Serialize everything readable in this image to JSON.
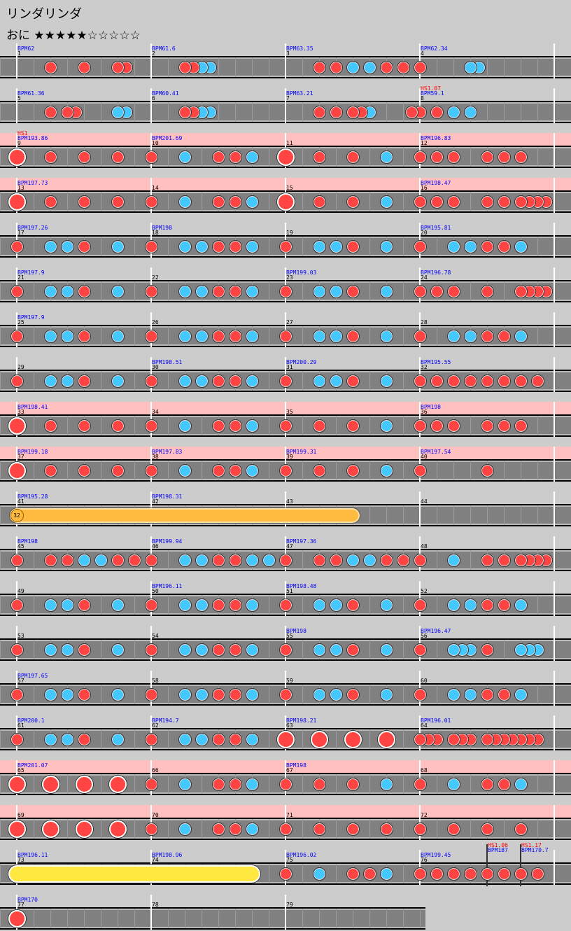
{
  "title": "リンダリンダ",
  "difficulty": {
    "label": "おに",
    "stars": "★★★★★☆☆☆☆☆",
    "level": 5,
    "max": 10
  },
  "colors": {
    "don": "#ff4444",
    "ka": "#44c8ff",
    "gogo": "#ffc0c0",
    "lane": "#808080",
    "roll": "#ffe840",
    "balloon": "#ffbb40"
  },
  "rows": [
    {
      "gogo": false,
      "measures": [
        {
          "num": "1",
          "bpm": "BPM62"
        },
        {
          "num": "2",
          "bpm": "BPM61.6"
        },
        {
          "num": "3",
          "bpm": "BPM63.35"
        },
        {
          "num": "4",
          "bpm": "BPM62.34"
        }
      ],
      "notes": "4d 8d 12d 13d 20d 21d 22k 23k 36d 38d 40k 42k 44d 46d 48d 54k 55k"
    },
    {
      "gogo": false,
      "measures": [
        {
          "num": "5",
          "bpm": "BPM61.36"
        },
        {
          "num": "6",
          "bpm": "BPM60.41"
        },
        {
          "num": "7",
          "bpm": "BPM63.21"
        },
        {
          "num": "8",
          "bpm": "BPM59.1",
          "hs": "HS1.07"
        }
      ],
      "notes": "4d 6d 7d 12k 13k 20d 21d 22k 23k 36d 38d 40d 41d 42k 47d 48d 50d 52k 54k"
    },
    {
      "gogo": true,
      "measures": [
        {
          "num": "9",
          "bpm": "BPM193.86",
          "hs": "HS1"
        },
        {
          "num": "10",
          "bpm": "BPM201.69"
        },
        {
          "num": "11"
        },
        {
          "num": "12",
          "bpm": "BPM196.83"
        }
      ],
      "notes": "0D 4d 8d 12d 16d 20k 24d 26d 28k 32D 36d 40d 44k 48d 50d 52d 56d 58d 60d"
    },
    {
      "gogo": true,
      "measures": [
        {
          "num": "13",
          "bpm": "BPM197.73"
        },
        {
          "num": "14"
        },
        {
          "num": "15"
        },
        {
          "num": "16",
          "bpm": "BPM198.47"
        }
      ],
      "notes": "0D 4d 8d 12d 16d 20k 24d 26d 28k 32D 36d 40d 44k 48d 50d 52d 56d 58d 60d 61d 62d 63d"
    },
    {
      "gogo": false,
      "measures": [
        {
          "num": "17",
          "bpm": "BPM197.26"
        },
        {
          "num": "18",
          "bpm": "BPM198"
        },
        {
          "num": "19"
        },
        {
          "num": "20",
          "bpm": "BPM195.81"
        }
      ],
      "notes": "0d 4k 6k 8d 12k 16d 20k 22k 24d 26d 28k 32d 36k 38k 40d 44k 48d 52k 54k 56d 58d 60k"
    },
    {
      "gogo": false,
      "measures": [
        {
          "num": "21",
          "bpm": "BPM197.9"
        },
        {
          "num": "22"
        },
        {
          "num": "23",
          "bpm": "BPM199.03"
        },
        {
          "num": "24",
          "bpm": "BPM196.78"
        }
      ],
      "notes": "0d 4k 6k 8d 12k 16d 20k 22k 24d 26d 28k 32d 36k 38k 40d 44k 48d 50d 52d 56d 60d 61d 62d 63d"
    },
    {
      "gogo": false,
      "measures": [
        {
          "num": "25",
          "bpm": "BPM197.9"
        },
        {
          "num": "26"
        },
        {
          "num": "27"
        },
        {
          "num": "28"
        }
      ],
      "notes": "0d 4k 6k 8d 12k 16d 20k 22k 24d 26d 28k 32d 36k 38k 40d 44k 48d 52k 54k 56d 58d 60k"
    },
    {
      "gogo": false,
      "measures": [
        {
          "num": "29"
        },
        {
          "num": "30",
          "bpm": "BPM198.51"
        },
        {
          "num": "31",
          "bpm": "BPM200.29"
        },
        {
          "num": "32",
          "bpm": "BPM195.55"
        }
      ],
      "notes": "0d 4k 6k 8d 12k 16d 20k 22k 24d 26d 28k 32d 36k 38k 40d 44k 48d 50d 52d 54d 56d 58d 60d 62d"
    },
    {
      "gogo": true,
      "measures": [
        {
          "num": "33",
          "bpm": "BPM198.41"
        },
        {
          "num": "34"
        },
        {
          "num": "35"
        },
        {
          "num": "36",
          "bpm": "BPM198"
        }
      ],
      "notes": "0D 4d 8d 12d 16d 20k 24d 26d 28k 32d 36d 40d 44k 48d 50d 52d 56d 58d 60d"
    },
    {
      "gogo": true,
      "measures": [
        {
          "num": "37",
          "bpm": "BPM199.18"
        },
        {
          "num": "38",
          "bpm": "BPM197.83"
        },
        {
          "num": "39",
          "bpm": "BPM199.31"
        },
        {
          "num": "40",
          "bpm": "BPM197.54"
        }
      ],
      "notes": "0D 4d 8d 12d 16d 20k 24d 26d 28k 32d 36d 40d 44k 48d 56d"
    },
    {
      "gogo": false,
      "measures": [
        {
          "num": "41",
          "bpm": "BPM195.28"
        },
        {
          "num": "42",
          "bpm": "BPM198.31"
        },
        {
          "num": "43"
        },
        {
          "num": "44"
        }
      ],
      "notes": "",
      "balloon": {
        "start": 0,
        "end": 40,
        "count": "32"
      }
    },
    {
      "gogo": false,
      "measures": [
        {
          "num": "45",
          "bpm": "BPM198"
        },
        {
          "num": "46",
          "bpm": "BPM199.94"
        },
        {
          "num": "47",
          "bpm": "BPM197.36"
        },
        {
          "num": "48"
        }
      ],
      "notes": "0d 4d 6d 8k 10k 12d 14d 16d 20k 22k 24d 26d 28k 30k 32d 36d 38d 40k 42k 44d 46d 48d 52k 56d 58d 60d 61d 62d 63d"
    },
    {
      "gogo": false,
      "measures": [
        {
          "num": "49"
        },
        {
          "num": "50",
          "bpm": "BPM196.11"
        },
        {
          "num": "51",
          "bpm": "BPM198.48"
        },
        {
          "num": "52"
        }
      ],
      "notes": "0d 4k 6k 8d 12k 16d 20k 22k 24d 26d 28k 32d 36k 38k 40d 44k 48d 52k 54k 56d 58d 60k"
    },
    {
      "gogo": false,
      "measures": [
        {
          "num": "53"
        },
        {
          "num": "54"
        },
        {
          "num": "55",
          "bpm": "BPM198"
        },
        {
          "num": "56",
          "bpm": "BPM196.47"
        }
      ],
      "notes": "0d 4k 6k 8d 12k 16d 20k 22k 24d 26d 28k 32d 36k 38k 40d 44k 48d 52k 53k 54k 56d 60k 61k 62k"
    },
    {
      "gogo": false,
      "measures": [
        {
          "num": "57",
          "bpm": "BPM197.65"
        },
        {
          "num": "58"
        },
        {
          "num": "59"
        },
        {
          "num": "60"
        }
      ],
      "notes": "0d 4k 6k 8d 12k 16d 20k 22k 24d 26d 28k 32d 36k 38k 40d 44k 48d 52k 54k 56d 58d 60k"
    },
    {
      "gogo": false,
      "measures": [
        {
          "num": "61",
          "bpm": "BPM200.1"
        },
        {
          "num": "62",
          "bpm": "BPM194.7"
        },
        {
          "num": "63",
          "bpm": "BPM198.21"
        },
        {
          "num": "64",
          "bpm": "BPM196.01"
        }
      ],
      "notes": "0d 4k 6k 8d 12k 16d 20k 22k 24d 26d 28k 32D 36D 40D 44D 48d 49d 50d 52d 53d 54d 56d 57d 58d 59d 60d 61d 62d"
    },
    {
      "gogo": true,
      "measures": [
        {
          "num": "65",
          "bpm": "BPM201.07"
        },
        {
          "num": "66"
        },
        {
          "num": "67",
          "bpm": "BPM198"
        },
        {
          "num": "68"
        }
      ],
      "notes": "0D 4D 8D 12D 16d 20k 24d 26d 28k 32d 36d 40d 44k 48d 52k 56d 58d 60k"
    },
    {
      "gogo": true,
      "measures": [
        {
          "num": "69"
        },
        {
          "num": "70"
        },
        {
          "num": "71"
        },
        {
          "num": "72"
        }
      ],
      "notes": "0D 4D 8D 12D 16d 20k 24d 26d 28k 32d 36d 40d 44d 48d 52d 56d 60d"
    },
    {
      "gogo": false,
      "measures": [
        {
          "num": "73",
          "bpm": "BPM196.11"
        },
        {
          "num": "74",
          "bpm": "BPM198.96"
        },
        {
          "num": "75",
          "bpm": "BPM196.02"
        },
        {
          "num": "76",
          "bpm": "BPM199.45"
        }
      ],
      "notes": "32d 36k 40d 42d 44k 48d 50d 52d 54d 56d 58d 60d 62d",
      "roll": {
        "start": 0,
        "end": 28
      },
      "events": [
        {
          "pos": 56,
          "hs": "HS1.06",
          "bpm": "BPM187"
        },
        {
          "pos": 60,
          "hs": "HS1.17",
          "bpm": "BPM170.7"
        }
      ]
    },
    {
      "gogo": false,
      "measures": [
        {
          "num": "77",
          "bpm": "BPM170"
        },
        {
          "num": "78"
        },
        {
          "num": "79"
        }
      ],
      "notes": "0D"
    }
  ]
}
